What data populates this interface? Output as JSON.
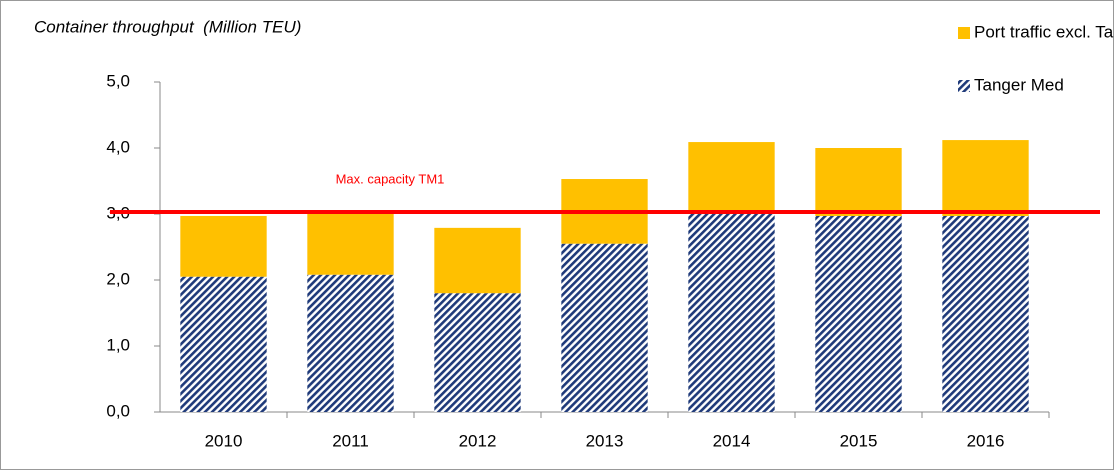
{
  "chart_data": {
    "type": "stacked_bar",
    "title": "Container throughput  (Million TEU)",
    "categories": [
      "2010",
      "2011",
      "2012",
      "2013",
      "2014",
      "2015",
      "2016"
    ],
    "series": [
      {
        "name": "Tanger Med",
        "color": "#1f3a7a",
        "values": [
          2.05,
          2.08,
          1.8,
          2.55,
          3.02,
          2.97,
          2.97
        ]
      },
      {
        "name": "Port traffic excl. Tanger Med",
        "color": "#ffc000",
        "values": [
          0.92,
          0.95,
          0.99,
          0.98,
          1.07,
          1.03,
          1.15
        ]
      }
    ],
    "ylim": [
      0,
      5
    ],
    "yticks": [
      {
        "value": 0,
        "label": "0,0"
      },
      {
        "value": 1,
        "label": "1,0"
      },
      {
        "value": 2,
        "label": "2,0"
      },
      {
        "value": 3,
        "label": "3,0"
      },
      {
        "value": 4,
        "label": "4,0"
      },
      {
        "value": 5,
        "label": "5,0"
      }
    ],
    "capacity_line": {
      "label": "Max. capacity TM1",
      "value": 3.03,
      "color": "#ff0000"
    }
  }
}
